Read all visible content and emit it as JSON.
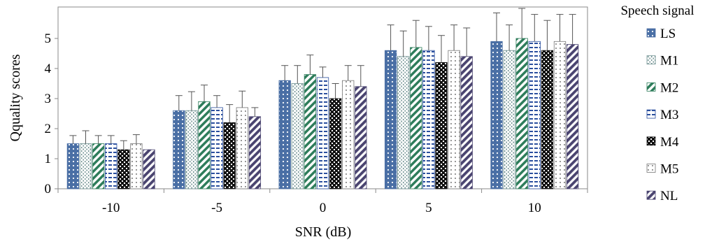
{
  "chart_data": {
    "type": "bar",
    "title": "",
    "xlabel": "SNR (dB)",
    "ylabel": "Qquality scores",
    "ylim": [
      0,
      6
    ],
    "yticks": [
      0,
      1,
      2,
      3,
      4,
      5
    ],
    "grid": false,
    "legend": {
      "title": "Speech signal",
      "placement": "right"
    },
    "categories": [
      "-10",
      "-5",
      "0",
      "5",
      "10"
    ],
    "series": [
      {
        "name": "LS",
        "values": [
          1.5,
          2.6,
          3.6,
          4.6,
          4.9
        ],
        "errors": [
          0.27,
          0.5,
          0.5,
          0.85,
          0.95
        ],
        "color": "#4a6fa5",
        "pattern": "dots-dark"
      },
      {
        "name": "M1",
        "values": [
          1.5,
          2.6,
          3.5,
          4.4,
          4.6
        ],
        "errors": [
          0.43,
          0.63,
          0.6,
          0.85,
          0.85
        ],
        "color": "#6b8e8e",
        "pattern": "vlines"
      },
      {
        "name": "M2",
        "values": [
          1.5,
          2.9,
          3.8,
          4.7,
          5.0
        ],
        "errors": [
          0.27,
          0.55,
          0.65,
          0.9,
          1.0
        ],
        "color": "#2e7d5b",
        "pattern": "diag"
      },
      {
        "name": "M3",
        "values": [
          1.5,
          2.7,
          3.7,
          4.6,
          4.9
        ],
        "errors": [
          0.27,
          0.4,
          0.35,
          0.8,
          0.9
        ],
        "color": "#2b4f9e",
        "pattern": "dashes"
      },
      {
        "name": "M4",
        "values": [
          1.3,
          2.2,
          3.0,
          4.2,
          4.6
        ],
        "errors": [
          0.3,
          0.6,
          0.5,
          0.9,
          1.0
        ],
        "color": "#111111",
        "pattern": "check"
      },
      {
        "name": "M5",
        "values": [
          1.5,
          2.7,
          3.6,
          4.6,
          4.9
        ],
        "errors": [
          0.3,
          0.55,
          0.5,
          0.85,
          0.9
        ],
        "color": "#777777",
        "pattern": "dots-light"
      },
      {
        "name": "NL",
        "values": [
          1.3,
          2.4,
          3.4,
          4.4,
          4.8
        ],
        "errors": [
          0.0,
          0.3,
          0.7,
          0.95,
          1.0
        ],
        "color": "#4a4470",
        "pattern": "diag-dark"
      }
    ]
  }
}
